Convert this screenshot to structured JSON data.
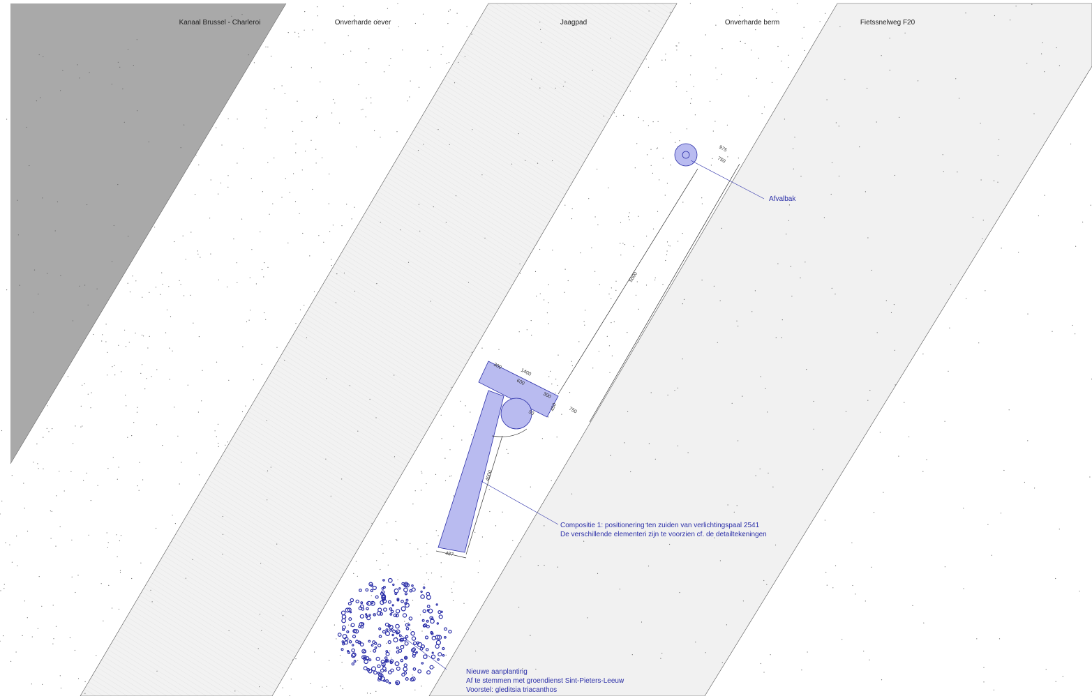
{
  "zones": [
    "Kanaal Brussel - Charleroi",
    "Onverharde oever",
    "Jaagpad",
    "Onverharde berm",
    "Fietssnelweg F20"
  ],
  "annotations": {
    "bin": "Afvalbak",
    "composition": [
      "Compositie 1: positionering ten zuiden van verlichtingspaal 2541",
      "De verschillende elementen zijn te voorzien cf. de detailtekeningen"
    ],
    "planting": [
      "Nieuwe aanplanting",
      "Af te stemmen met groendienst Sint-Pieters-Leeuw",
      "Voorstel: gleditsia triacanthos"
    ]
  },
  "dimensions": [
    "975",
    "750",
    "5000",
    "300",
    "1400",
    "600",
    "300",
    "750",
    "450",
    "50",
    "4000",
    "487"
  ]
}
